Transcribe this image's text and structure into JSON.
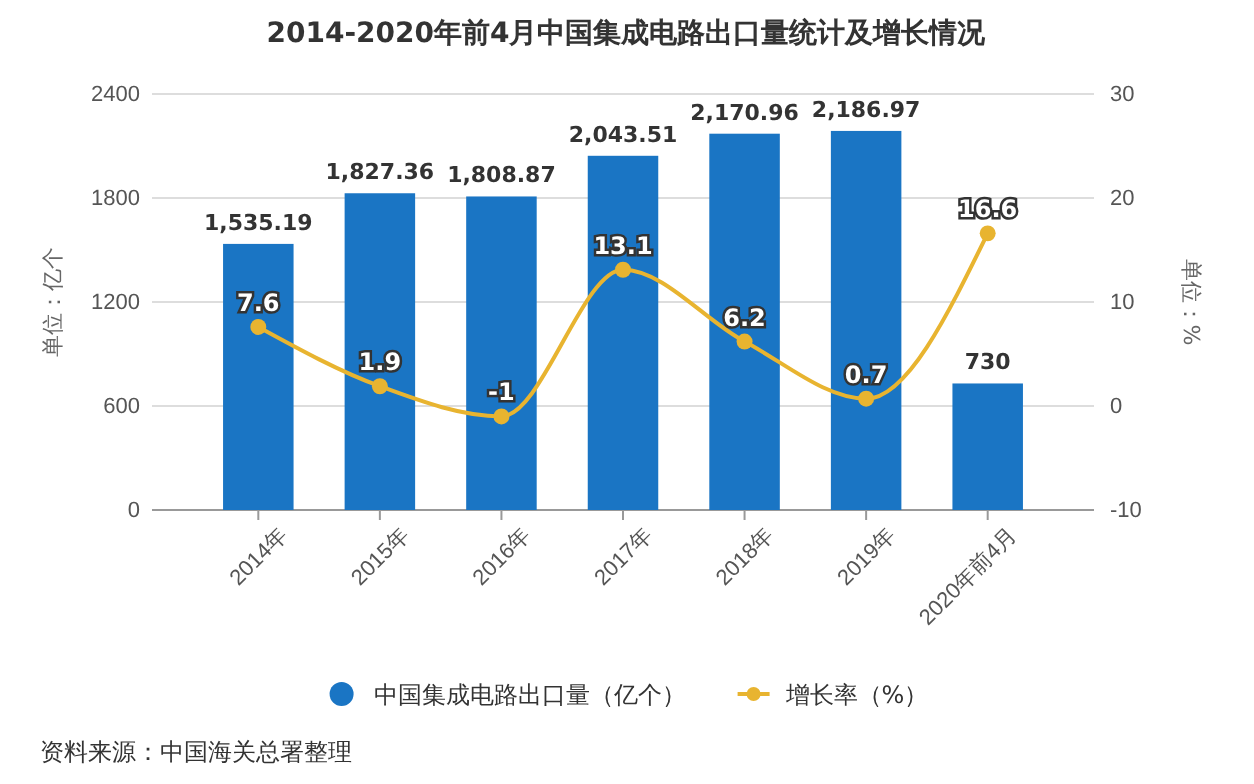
{
  "chart_data": {
    "type": "bar",
    "title": "2014-2020年前4月中国集成电路出口量统计及增长情况",
    "categories": [
      "2014年",
      "2015年",
      "2016年",
      "2017年",
      "2018年",
      "2019年",
      "2020年前4月"
    ],
    "series": [
      {
        "name": "中国集成电路出口量（亿个）",
        "color": "#1a75c4",
        "values": [
          1535.19,
          1827.36,
          1808.87,
          2043.51,
          2170.96,
          2186.97,
          730
        ],
        "value_labels": [
          "1,535.19",
          "1,827.36",
          "1,808.87",
          "2,043.51",
          "2,170.96",
          "2,186.97",
          "730"
        ]
      },
      {
        "name": "增长率（%）",
        "type": "line",
        "axis": "y2",
        "color": "#e8b430",
        "marker": "circle",
        "values": [
          7.6,
          1.9,
          -1,
          13.1,
          6.2,
          0.7,
          16.6
        ],
        "value_labels": [
          "7.6",
          "1.9",
          "-1",
          "13.1",
          "6.2",
          "0.7",
          "16.6"
        ]
      }
    ],
    "ylabel": "单位：亿个",
    "y2label": "单位：%",
    "ylim": [
      0,
      2400
    ],
    "yticks": [
      0,
      600,
      1200,
      1800,
      2400
    ],
    "y2lim": [
      -10,
      30
    ],
    "y2ticks": [
      -10,
      0,
      10,
      20,
      30
    ],
    "grid": "y",
    "legend": "bottom",
    "annotations": [
      "资料来源：中国海关总署整理"
    ]
  }
}
